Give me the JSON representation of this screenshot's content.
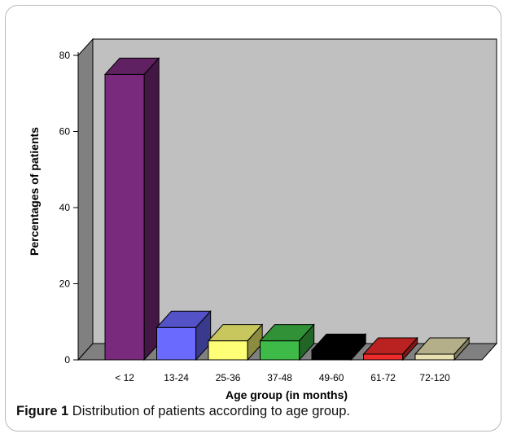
{
  "chart_data": {
    "type": "bar",
    "style": "3d",
    "categories": [
      "< 12",
      "13-24",
      "25-36",
      "37-48",
      "49-60",
      "61-72",
      "72-120"
    ],
    "values": [
      75,
      8.5,
      5,
      5,
      2.5,
      1.5,
      1.5
    ],
    "colors": [
      "#7a2a7c",
      "#6a6aff",
      "#ffff77",
      "#3dba47",
      "#000000",
      "#ee2a2a",
      "#e8e0b0"
    ],
    "xlabel": "Age group (in months)",
    "ylabel": "Percentages of patients",
    "ylim": [
      0,
      80
    ],
    "yticks": [
      0,
      20,
      40,
      60,
      80
    ],
    "wall_color": "#c0c0c0",
    "side_wall_color": "#808080",
    "grid": false,
    "legend": false
  },
  "caption": {
    "label": "Figure 1",
    "text": "Distribution of patients according to age group."
  }
}
